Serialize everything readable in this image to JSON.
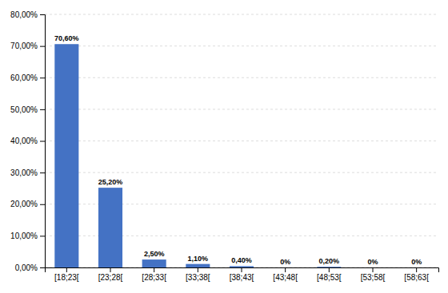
{
  "chart_data": {
    "type": "bar",
    "categories": [
      "[18;23[",
      "[23;28[",
      "[28;33[",
      "[33;38[",
      "[38;43[",
      "[43;48[",
      "[48;53[",
      "[53;58[",
      "[58;63["
    ],
    "values": [
      70.6,
      25.2,
      2.5,
      1.1,
      0.4,
      0.0,
      0.2,
      0.0,
      0.0
    ],
    "value_labels": [
      "70,60%",
      "25,20%",
      "2,50%",
      "1,10%",
      "0,40%",
      "0%",
      "0,20%",
      "0%",
      "0%"
    ],
    "data_labels": true,
    "color": "#4472C4",
    "ylim": [
      0,
      80
    ],
    "yticks": [
      {
        "value": 0,
        "label": "0,00%"
      },
      {
        "value": 10,
        "label": "10,00%"
      },
      {
        "value": 20,
        "label": "20,00%"
      },
      {
        "value": 30,
        "label": "30,00%"
      },
      {
        "value": 40,
        "label": "40,00%"
      },
      {
        "value": 50,
        "label": "50,00%"
      },
      {
        "value": 60,
        "label": "60,00%"
      },
      {
        "value": 70,
        "label": "70,00%"
      },
      {
        "value": 80,
        "label": "80,00%"
      }
    ],
    "grid": true
  }
}
